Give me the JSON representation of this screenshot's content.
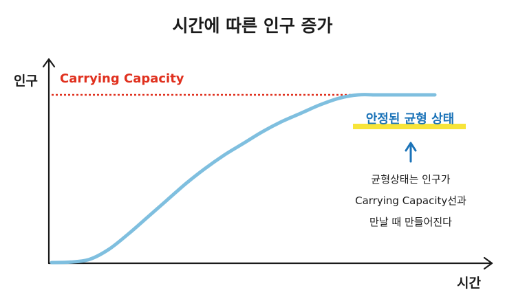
{
  "chart_data": {
    "type": "line",
    "title": "시간에 따른 인구 증가",
    "xlabel": "시간",
    "ylabel": "인구",
    "x": [
      0,
      0.05,
      0.1,
      0.15,
      0.2,
      0.25,
      0.3,
      0.35,
      0.4,
      0.45,
      0.5,
      0.55,
      0.6,
      0.65,
      0.7,
      0.75,
      0.8,
      0.85,
      0.9,
      0.95,
      1.0
    ],
    "series": [
      {
        "values": [
          0.0,
          0.003,
          0.02,
          0.08,
          0.17,
          0.27,
          0.37,
          0.47,
          0.56,
          0.64,
          0.71,
          0.78,
          0.84,
          0.89,
          0.94,
          0.98,
          1.0,
          1.0,
          1.0,
          1.0,
          1.0
        ],
        "color": "#7fbfdf"
      }
    ],
    "ylim": [
      0,
      1
    ],
    "grid": false,
    "reference_line": {
      "label": "Carrying Capacity",
      "y": 1.0,
      "style": "dotted",
      "color": "#e0301e"
    },
    "annotations": {
      "stable_label": "안정된 균형 상태",
      "stable_color": "#1b73b8",
      "highlight_color": "#f7e43a",
      "note_lines": [
        "균형상태는 인구가",
        "Carrying Capacity선과",
        "만날 때 만들어진다"
      ]
    }
  }
}
